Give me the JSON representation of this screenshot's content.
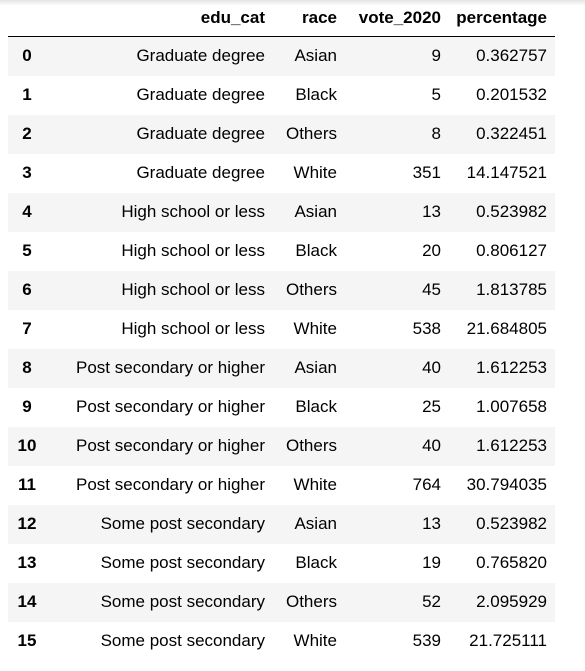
{
  "table": {
    "columns": [
      "",
      "edu_cat",
      "race",
      "vote_2020",
      "percentage"
    ],
    "rows": [
      {
        "index": "0",
        "edu_cat": "Graduate degree",
        "race": "Asian",
        "vote_2020": "9",
        "percentage": "0.362757"
      },
      {
        "index": "1",
        "edu_cat": "Graduate degree",
        "race": "Black",
        "vote_2020": "5",
        "percentage": "0.201532"
      },
      {
        "index": "2",
        "edu_cat": "Graduate degree",
        "race": "Others",
        "vote_2020": "8",
        "percentage": "0.322451"
      },
      {
        "index": "3",
        "edu_cat": "Graduate degree",
        "race": "White",
        "vote_2020": "351",
        "percentage": "14.147521"
      },
      {
        "index": "4",
        "edu_cat": "High school or less",
        "race": "Asian",
        "vote_2020": "13",
        "percentage": "0.523982"
      },
      {
        "index": "5",
        "edu_cat": "High school or less",
        "race": "Black",
        "vote_2020": "20",
        "percentage": "0.806127"
      },
      {
        "index": "6",
        "edu_cat": "High school or less",
        "race": "Others",
        "vote_2020": "45",
        "percentage": "1.813785"
      },
      {
        "index": "7",
        "edu_cat": "High school or less",
        "race": "White",
        "vote_2020": "538",
        "percentage": "21.684805"
      },
      {
        "index": "8",
        "edu_cat": "Post secondary or higher",
        "race": "Asian",
        "vote_2020": "40",
        "percentage": "1.612253"
      },
      {
        "index": "9",
        "edu_cat": "Post secondary or higher",
        "race": "Black",
        "vote_2020": "25",
        "percentage": "1.007658"
      },
      {
        "index": "10",
        "edu_cat": "Post secondary or higher",
        "race": "Others",
        "vote_2020": "40",
        "percentage": "1.612253"
      },
      {
        "index": "11",
        "edu_cat": "Post secondary or higher",
        "race": "White",
        "vote_2020": "764",
        "percentage": "30.794035"
      },
      {
        "index": "12",
        "edu_cat": "Some post secondary",
        "race": "Asian",
        "vote_2020": "13",
        "percentage": "0.523982"
      },
      {
        "index": "13",
        "edu_cat": "Some post secondary",
        "race": "Black",
        "vote_2020": "19",
        "percentage": "0.765820"
      },
      {
        "index": "14",
        "edu_cat": "Some post secondary",
        "race": "Others",
        "vote_2020": "52",
        "percentage": "2.095929"
      },
      {
        "index": "15",
        "edu_cat": "Some post secondary",
        "race": "White",
        "vote_2020": "539",
        "percentage": "21.725111"
      }
    ]
  }
}
